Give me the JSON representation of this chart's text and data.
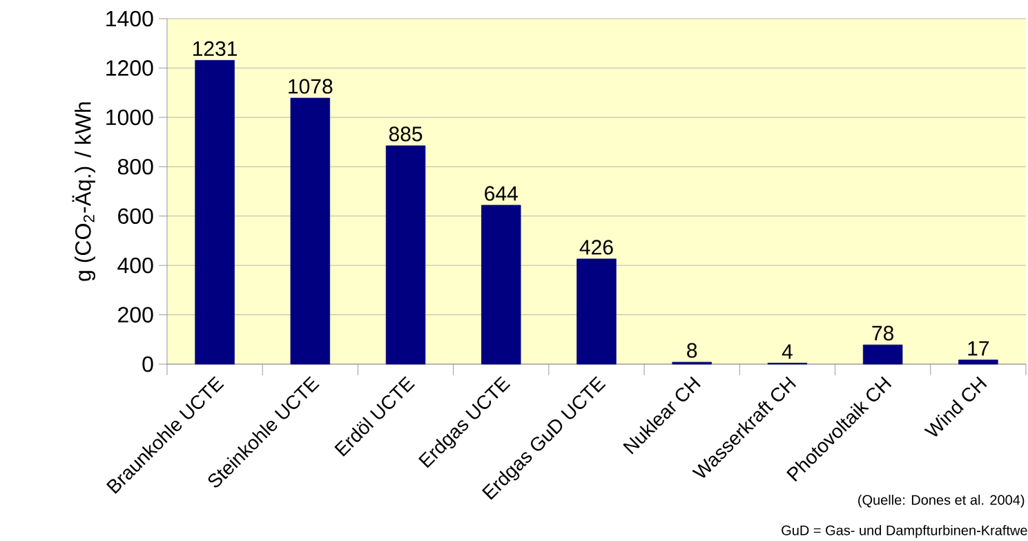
{
  "chart_data": {
    "type": "bar",
    "ylabel": "g (CO$_{2}$-Äq.) / kWh",
    "categories": [
      "Braunkohle UCTE",
      "Steinkohle UCTE",
      "Erdöl UCTE",
      "Erdgas UCTE",
      "Erdgas GuD UCTE",
      "Nuklear CH",
      "Wasserkraft CH",
      "Photovoltaik CH",
      "Wind CH"
    ],
    "values": [
      1231,
      1078,
      885,
      644,
      426,
      8,
      4,
      78,
      17
    ],
    "color": "#000080",
    "ylim": [
      0,
      1400
    ],
    "yticks": [
      0,
      200,
      400,
      600,
      800,
      1000,
      1200,
      1400
    ],
    "grid": "y",
    "data_labels": true,
    "annotations": [
      "(Quelle: Dones et al. 2004)",
      "GuD = Gas- und Dampfturbinen-Kraftwe"
    ]
  }
}
